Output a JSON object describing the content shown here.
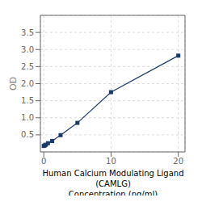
{
  "chart_data": {
    "type": "line",
    "x": [
      0,
      0.156,
      0.312,
      0.625,
      1.25,
      2.5,
      5,
      10,
      20
    ],
    "values": [
      0.175,
      0.19,
      0.21,
      0.255,
      0.32,
      0.49,
      0.85,
      1.75,
      2.82
    ],
    "xlabel": "Human Calcium Modulating Ligand (CAMLG)\nConcentration (ng/ml)",
    "ylabel": "OD",
    "xlim": [
      -0.5,
      21
    ],
    "ylim": [
      0,
      4.0
    ],
    "xticks": [
      0,
      10,
      20
    ],
    "yticks": [
      0.5,
      {
        "value": 1.0,
        "label": "1.0"
      },
      1.5,
      {
        "value": 2.0,
        "label": "2.0"
      },
      2.5,
      {
        "value": 3.0,
        "label": "3.0"
      },
      3.5
    ],
    "color": "#1a3a6b",
    "marker": "square",
    "grid": true
  }
}
